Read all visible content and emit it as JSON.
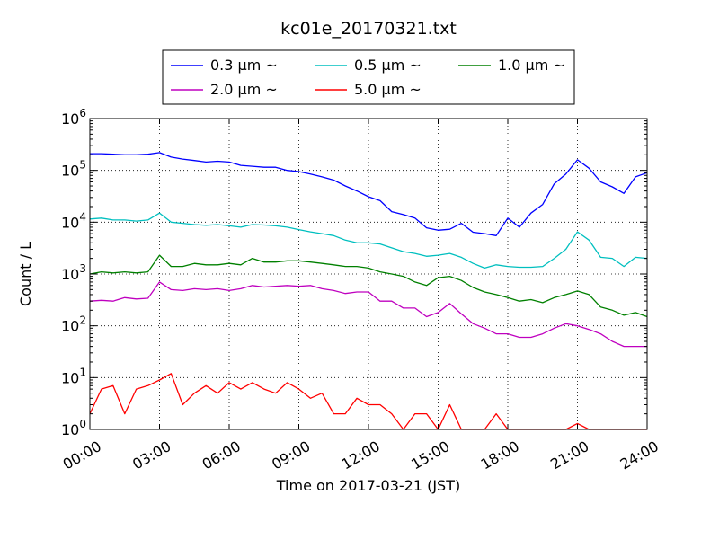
{
  "chart_data": {
    "type": "line",
    "title": "kc01e_20170321.txt",
    "xlabel": "Time on 2017-03-21 (JST)",
    "ylabel": "Count / L",
    "yscale": "log",
    "ylim": [
      1,
      1000000
    ],
    "xlim": [
      "2017-03-21 00:00",
      "2017-03-22 00:00"
    ],
    "grid": true,
    "legend_position": "top-center",
    "x_tick_labels": [
      "00:00",
      "03:00",
      "06:00",
      "09:00",
      "12:00",
      "15:00",
      "18:00",
      "21:00",
      "24:00"
    ],
    "y_tick_labels": [
      {
        "base": "10",
        "exp": "0"
      },
      {
        "base": "10",
        "exp": "1"
      },
      {
        "base": "10",
        "exp": "2"
      },
      {
        "base": "10",
        "exp": "3"
      },
      {
        "base": "10",
        "exp": "4"
      },
      {
        "base": "10",
        "exp": "5"
      },
      {
        "base": "10",
        "exp": "6"
      }
    ],
    "x": [
      "00:00",
      "00:30",
      "01:00",
      "01:30",
      "02:00",
      "02:30",
      "03:00",
      "03:30",
      "04:00",
      "04:30",
      "05:00",
      "05:30",
      "06:00",
      "06:30",
      "07:00",
      "07:30",
      "08:00",
      "08:30",
      "09:00",
      "09:30",
      "10:00",
      "10:30",
      "11:00",
      "11:30",
      "12:00",
      "12:30",
      "13:00",
      "13:30",
      "14:00",
      "14:30",
      "15:00",
      "15:30",
      "16:00",
      "16:30",
      "17:00",
      "17:30",
      "18:00",
      "18:30",
      "19:00",
      "19:30",
      "20:00",
      "20:30",
      "21:00",
      "21:30",
      "22:00",
      "22:30",
      "23:00",
      "23:30",
      "24:00"
    ],
    "series": [
      {
        "name": "0.3 μm ~",
        "color": "#0000ff",
        "values": [
          210000,
          210000,
          205000,
          200000,
          200000,
          205000,
          220000,
          180000,
          165000,
          155000,
          145000,
          150000,
          145000,
          125000,
          120000,
          115000,
          115000,
          100000,
          95000,
          85000,
          75000,
          65000,
          50000,
          40000,
          31000,
          26000,
          16000,
          14000,
          12000,
          7800,
          7000,
          7300,
          9500,
          6400,
          6000,
          5500,
          12000,
          8000,
          15000,
          22000,
          55000,
          85000,
          160000,
          110000,
          60000,
          48000,
          36000,
          75000,
          90000
        ]
      },
      {
        "name": "0.5 μm ~",
        "color": "#00bfbf",
        "values": [
          11500,
          12000,
          11000,
          11000,
          10500,
          11000,
          15000,
          10000,
          9500,
          9000,
          8700,
          9000,
          8500,
          8000,
          9000,
          8800,
          8500,
          8000,
          7200,
          6500,
          6000,
          5500,
          4500,
          4000,
          4000,
          3800,
          3200,
          2700,
          2500,
          2200,
          2300,
          2500,
          2100,
          1600,
          1300,
          1500,
          1400,
          1350,
          1350,
          1400,
          2000,
          3000,
          6500,
          4500,
          2100,
          2000,
          1400,
          2100,
          2000
        ]
      },
      {
        "name": "1.0 μm ~",
        "color": "#008000",
        "values": [
          1000,
          1100,
          1050,
          1100,
          1050,
          1100,
          2300,
          1400,
          1400,
          1600,
          1500,
          1500,
          1600,
          1500,
          2000,
          1700,
          1700,
          1800,
          1800,
          1700,
          1600,
          1500,
          1400,
          1400,
          1300,
          1100,
          1000,
          900,
          700,
          600,
          850,
          900,
          750,
          550,
          450,
          400,
          350,
          300,
          320,
          280,
          350,
          400,
          470,
          400,
          230,
          200,
          160,
          180,
          150
        ]
      },
      {
        "name": "2.0 μm ~",
        "color": "#bf00bf",
        "values": [
          300,
          310,
          300,
          350,
          330,
          340,
          700,
          500,
          480,
          520,
          500,
          520,
          480,
          520,
          600,
          560,
          580,
          600,
          580,
          600,
          520,
          480,
          420,
          450,
          450,
          300,
          300,
          220,
          220,
          150,
          180,
          270,
          170,
          110,
          90,
          70,
          70,
          60,
          60,
          70,
          90,
          110,
          100,
          85,
          70,
          50,
          40,
          40,
          40
        ]
      },
      {
        "name": "5.0 μm ~",
        "color": "#ff0000",
        "values": [
          2,
          6,
          7,
          2,
          6,
          7,
          9,
          12,
          3,
          5,
          7,
          5,
          8,
          6,
          8,
          6,
          5,
          8,
          6,
          4,
          5,
          2,
          2,
          4,
          3,
          3,
          2,
          1,
          2,
          2,
          1,
          3,
          1,
          1,
          1,
          2,
          1,
          1,
          1,
          1,
          1,
          1,
          1.3,
          1,
          1,
          1,
          1,
          1,
          1
        ]
      }
    ]
  }
}
